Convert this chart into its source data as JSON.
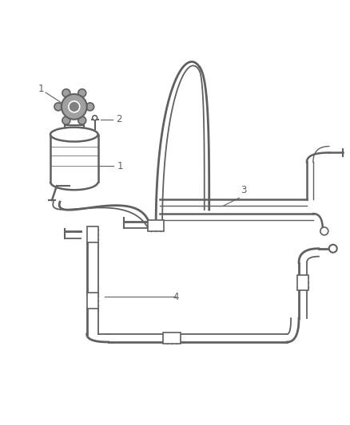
{
  "background_color": "#ffffff",
  "line_color": "#606060",
  "label_color": "#606060",
  "fig_width": 4.38,
  "fig_height": 5.33,
  "dpi": 100,
  "label_fontsize": 8.5
}
